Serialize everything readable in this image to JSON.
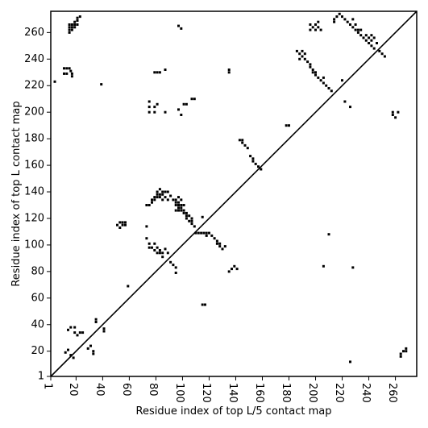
{
  "chart_data": {
    "type": "scatter",
    "title": "",
    "xlabel": "Residue index of top L/5 contact map",
    "ylabel": "Residue index of top L contact map",
    "xlim": [
      1,
      276
    ],
    "ylim": [
      1,
      276
    ],
    "xticks": [
      1,
      20,
      40,
      60,
      80,
      100,
      120,
      140,
      160,
      180,
      200,
      220,
      240,
      260
    ],
    "yticks": [
      1,
      20,
      40,
      60,
      80,
      100,
      120,
      140,
      160,
      180,
      200,
      220,
      240,
      260
    ],
    "xtick_labels": [
      "1",
      "20",
      "40",
      "60",
      "80",
      "100",
      "120",
      "140",
      "160",
      "180",
      "200",
      "220",
      "240",
      "260"
    ],
    "ytick_labels": [
      "1",
      "20",
      "40",
      "60",
      "80",
      "100",
      "120",
      "140",
      "160",
      "180",
      "200",
      "220",
      "240",
      "260"
    ],
    "grid": false,
    "diagonal": true,
    "marker_color": "#000000",
    "series": [
      {
        "points": [
          [
            11,
            233
          ],
          [
            13,
            233
          ],
          [
            15,
            233
          ],
          [
            11,
            229
          ],
          [
            13,
            229
          ],
          [
            17,
            229
          ],
          [
            17,
            227
          ],
          [
            16,
            231
          ],
          [
            15,
            266
          ],
          [
            17,
            266
          ],
          [
            19,
            266
          ],
          [
            21,
            266
          ],
          [
            15,
            264
          ],
          [
            17,
            264
          ],
          [
            19,
            264
          ],
          [
            15,
            262
          ],
          [
            17,
            262
          ],
          [
            21,
            269
          ],
          [
            21,
            271
          ],
          [
            23,
            272
          ],
          [
            19,
            268
          ],
          [
            15,
            260
          ],
          [
            4,
            223
          ],
          [
            39,
            221
          ],
          [
            12,
            19
          ],
          [
            14,
            21
          ],
          [
            16,
            17
          ],
          [
            18,
            15
          ],
          [
            14,
            36
          ],
          [
            16,
            38
          ],
          [
            19,
            34
          ],
          [
            21,
            32
          ],
          [
            23,
            34
          ],
          [
            25,
            34
          ],
          [
            19,
            38
          ],
          [
            29,
            22
          ],
          [
            31,
            24
          ],
          [
            33,
            20
          ],
          [
            33,
            18
          ],
          [
            35,
            42
          ],
          [
            35,
            44
          ],
          [
            41,
            35
          ],
          [
            41,
            37
          ],
          [
            51,
            115
          ],
          [
            53,
            113
          ],
          [
            53,
            117
          ],
          [
            55,
            115
          ],
          [
            55,
            117
          ],
          [
            57,
            115
          ],
          [
            57,
            117
          ],
          [
            59,
            69
          ],
          [
            73,
            114
          ],
          [
            73,
            105
          ],
          [
            75,
            101
          ],
          [
            75,
            98
          ],
          [
            77,
            98
          ],
          [
            79,
            96
          ],
          [
            79,
            101
          ],
          [
            81,
            94
          ],
          [
            83,
            94
          ],
          [
            85,
            94
          ],
          [
            83,
            96
          ],
          [
            81,
            98
          ],
          [
            87,
            97
          ],
          [
            89,
            94
          ],
          [
            85,
            91
          ],
          [
            91,
            87
          ],
          [
            93,
            85
          ],
          [
            95,
            83
          ],
          [
            95,
            79
          ],
          [
            73,
            130
          ],
          [
            75,
            130
          ],
          [
            77,
            132
          ],
          [
            77,
            134
          ],
          [
            79,
            134
          ],
          [
            79,
            136
          ],
          [
            81,
            136
          ],
          [
            81,
            138
          ],
          [
            83,
            136
          ],
          [
            83,
            138
          ],
          [
            85,
            138
          ],
          [
            85,
            140
          ],
          [
            81,
            140
          ],
          [
            83,
            142
          ],
          [
            85,
            134
          ],
          [
            87,
            136
          ],
          [
            87,
            140
          ],
          [
            89,
            140
          ],
          [
            89,
            134
          ],
          [
            91,
            137
          ],
          [
            93,
            134
          ],
          [
            95,
            134
          ],
          [
            95,
            132
          ],
          [
            95,
            130
          ],
          [
            97,
            132
          ],
          [
            97,
            130
          ],
          [
            97,
            128
          ],
          [
            99,
            126
          ],
          [
            99,
            128
          ],
          [
            99,
            130
          ],
          [
            101,
            130
          ],
          [
            101,
            126
          ],
          [
            101,
            124
          ],
          [
            103,
            124
          ],
          [
            103,
            122
          ],
          [
            103,
            120
          ],
          [
            105,
            122
          ],
          [
            105,
            118
          ],
          [
            107,
            118
          ],
          [
            107,
            116
          ],
          [
            107,
            120
          ],
          [
            109,
            114
          ],
          [
            95,
            126
          ],
          [
            97,
            126
          ],
          [
            97,
            136
          ],
          [
            99,
            134
          ],
          [
            115,
            121
          ],
          [
            110,
            109
          ],
          [
            112,
            109
          ],
          [
            114,
            109
          ],
          [
            116,
            109
          ],
          [
            118,
            109
          ],
          [
            120,
            109
          ],
          [
            122,
            107
          ],
          [
            124,
            105
          ],
          [
            126,
            103
          ],
          [
            128,
            101
          ],
          [
            128,
            99
          ],
          [
            130,
            97
          ],
          [
            132,
            99
          ],
          [
            126,
            101
          ],
          [
            118,
            107
          ],
          [
            115,
            55
          ],
          [
            117,
            55
          ],
          [
            75,
            208
          ],
          [
            75,
            204
          ],
          [
            75,
            200
          ],
          [
            79,
            200
          ],
          [
            79,
            204
          ],
          [
            81,
            206
          ],
          [
            87,
            200
          ],
          [
            97,
            202
          ],
          [
            99,
            198
          ],
          [
            101,
            206
          ],
          [
            103,
            206
          ],
          [
            107,
            210
          ],
          [
            109,
            210
          ],
          [
            79,
            230
          ],
          [
            81,
            230
          ],
          [
            83,
            230
          ],
          [
            87,
            232
          ],
          [
            97,
            265
          ],
          [
            99,
            263
          ],
          [
            135,
            232
          ],
          [
            135,
            230
          ],
          [
            135,
            80
          ],
          [
            137,
            82
          ],
          [
            139,
            84
          ],
          [
            141,
            82
          ],
          [
            143,
            179
          ],
          [
            145,
            179
          ],
          [
            145,
            177
          ],
          [
            147,
            175
          ],
          [
            149,
            173
          ],
          [
            151,
            167
          ],
          [
            153,
            165
          ],
          [
            153,
            163
          ],
          [
            155,
            161
          ],
          [
            157,
            159
          ],
          [
            159,
            157
          ],
          [
            178,
            190
          ],
          [
            180,
            190
          ],
          [
            186,
            246
          ],
          [
            188,
            244
          ],
          [
            190,
            242
          ],
          [
            192,
            240
          ],
          [
            194,
            238
          ],
          [
            196,
            236
          ],
          [
            196,
            234
          ],
          [
            198,
            232
          ],
          [
            198,
            230
          ],
          [
            200,
            230
          ],
          [
            200,
            228
          ],
          [
            202,
            226
          ],
          [
            204,
            224
          ],
          [
            206,
            222
          ],
          [
            208,
            220
          ],
          [
            210,
            218
          ],
          [
            212,
            216
          ],
          [
            206,
            226
          ],
          [
            188,
            240
          ],
          [
            190,
            246
          ],
          [
            192,
            244
          ],
          [
            196,
            262
          ],
          [
            198,
            264
          ],
          [
            200,
            262
          ],
          [
            202,
            264
          ],
          [
            204,
            262
          ],
          [
            196,
            266
          ],
          [
            200,
            266
          ],
          [
            202,
            268
          ],
          [
            206,
            84
          ],
          [
            210,
            108
          ],
          [
            214,
            268
          ],
          [
            216,
            272
          ],
          [
            218,
            274
          ],
          [
            220,
            272
          ],
          [
            222,
            270
          ],
          [
            224,
            268
          ],
          [
            226,
            266
          ],
          [
            228,
            264
          ],
          [
            230,
            262
          ],
          [
            232,
            260
          ],
          [
            234,
            258
          ],
          [
            236,
            256
          ],
          [
            238,
            254
          ],
          [
            240,
            252
          ],
          [
            242,
            250
          ],
          [
            228,
            270
          ],
          [
            230,
            266
          ],
          [
            232,
            262
          ],
          [
            234,
            262
          ],
          [
            238,
            258
          ],
          [
            240,
            256
          ],
          [
            242,
            254
          ],
          [
            242,
            258
          ],
          [
            244,
            256
          ],
          [
            246,
            252
          ],
          [
            248,
            246
          ],
          [
            250,
            244
          ],
          [
            252,
            242
          ],
          [
            244,
            248
          ],
          [
            222,
            208
          ],
          [
            226,
            204
          ],
          [
            226,
            12
          ],
          [
            228,
            83
          ],
          [
            258,
            198
          ],
          [
            258,
            200
          ],
          [
            260,
            196
          ],
          [
            262,
            200
          ],
          [
            264,
            16
          ],
          [
            264,
            18
          ],
          [
            266,
            20
          ],
          [
            268,
            22
          ],
          [
            268,
            20
          ],
          [
            220,
            224
          ],
          [
            214,
            270
          ]
        ]
      }
    ]
  }
}
